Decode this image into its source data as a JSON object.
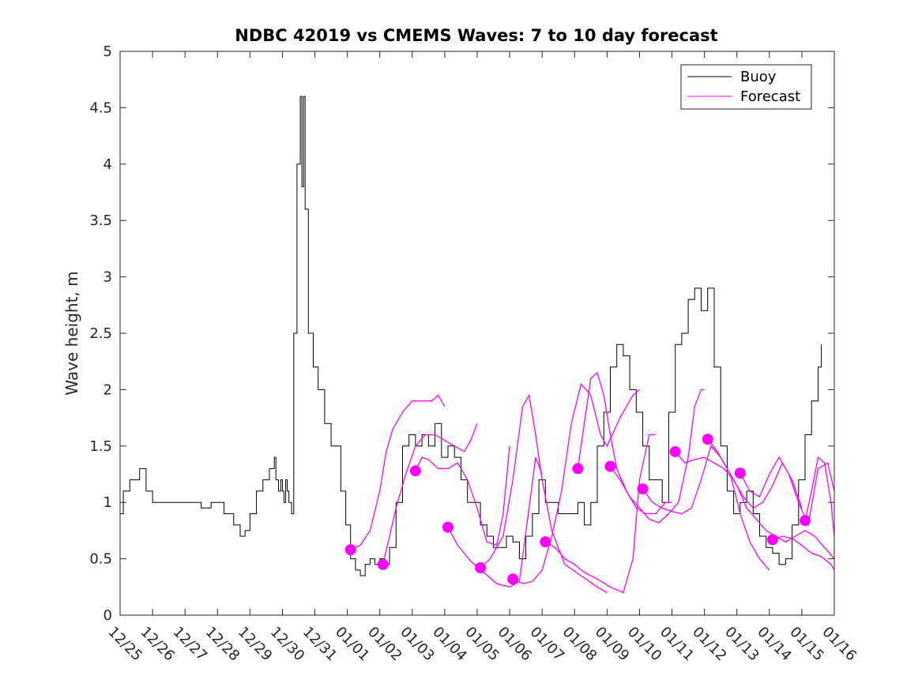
{
  "chart_data": {
    "type": "line",
    "title": "NDBC 42019 vs CMEMS Waves: 7 to 10 day forecast",
    "xlabel": "",
    "ylabel": "Wave height, m",
    "xlim": [
      0,
      22
    ],
    "ylim": [
      0,
      5
    ],
    "yticks": [
      0,
      0.5,
      1,
      1.5,
      2,
      2.5,
      3,
      3.5,
      4,
      4.5,
      5
    ],
    "ytick_labels": [
      "0",
      "0.5",
      "1",
      "1.5",
      "2",
      "2.5",
      "3",
      "3.5",
      "4",
      "4.5",
      "5"
    ],
    "xticks": [
      0,
      1,
      2,
      3,
      4,
      5,
      6,
      7,
      8,
      9,
      10,
      11,
      12,
      13,
      14,
      15,
      16,
      17,
      18,
      19,
      20,
      21,
      22
    ],
    "xtick_labels": [
      "12/25",
      "12/26",
      "12/27",
      "12/28",
      "12/29",
      "12/30",
      "12/31",
      "01/01",
      "01/02",
      "01/03",
      "01/04",
      "01/05",
      "01/06",
      "01/07",
      "01/08",
      "01/09",
      "01/10",
      "01/11",
      "01/12",
      "01/13",
      "01/14",
      "01/15",
      "01/16"
    ],
    "legend": {
      "position": "top-right",
      "entries": [
        {
          "label": "Buoy",
          "color": "#000000"
        },
        {
          "label": "Forecast",
          "color": "#ff00ff"
        }
      ]
    },
    "series": [
      {
        "name": "Buoy",
        "color": "#000000",
        "x": [
          0,
          0.1,
          0.3,
          0.5,
          0.6,
          0.8,
          1.0,
          1.3,
          1.6,
          1.9,
          2.2,
          2.5,
          2.8,
          3.0,
          3.2,
          3.5,
          3.7,
          3.85,
          4.0,
          4.2,
          4.4,
          4.6,
          4.75,
          4.8,
          4.88,
          4.95,
          5.0,
          5.05,
          5.1,
          5.15,
          5.2,
          5.28,
          5.35,
          5.45,
          5.55,
          5.6,
          5.65,
          5.7,
          5.8,
          5.95,
          6.1,
          6.3,
          6.5,
          6.8,
          6.95,
          7.1,
          7.25,
          7.4,
          7.55,
          7.7,
          7.85,
          8.0,
          8.15,
          8.3,
          8.5,
          8.7,
          8.9,
          9.1,
          9.3,
          9.5,
          9.7,
          9.9,
          10.1,
          10.3,
          10.5,
          10.7,
          10.9,
          11.1,
          11.3,
          11.5,
          11.7,
          11.9,
          12.1,
          12.3,
          12.5,
          12.7,
          12.9,
          13.1,
          13.3,
          13.5,
          13.7,
          13.9,
          14.1,
          14.3,
          14.5,
          14.7,
          14.9,
          15.1,
          15.3,
          15.5,
          15.7,
          15.9,
          16.1,
          16.3,
          16.5,
          16.7,
          16.9,
          17.1,
          17.3,
          17.5,
          17.7,
          17.9,
          18.1,
          18.3,
          18.5,
          18.7,
          18.9,
          19.1,
          19.3,
          19.5,
          19.7,
          19.9,
          20.1,
          20.3,
          20.5,
          20.7,
          20.9,
          21.1,
          21.3,
          21.5,
          21.6
        ],
        "y": [
          0.9,
          1.1,
          1.2,
          1.2,
          1.3,
          1.1,
          1.0,
          1.0,
          1.0,
          1.0,
          1.0,
          0.95,
          1.0,
          1.0,
          0.9,
          0.8,
          0.7,
          0.75,
          0.9,
          1.1,
          1.2,
          1.3,
          1.4,
          1.2,
          1.1,
          1.2,
          1.1,
          1.0,
          1.2,
          1.1,
          1.0,
          0.9,
          2.5,
          4.0,
          4.6,
          3.8,
          4.6,
          3.6,
          2.5,
          2.2,
          2.0,
          1.7,
          1.5,
          1.1,
          0.8,
          0.5,
          0.4,
          0.35,
          0.45,
          0.5,
          0.45,
          0.5,
          0.45,
          0.6,
          1.0,
          1.5,
          1.6,
          1.5,
          1.6,
          1.5,
          1.7,
          1.4,
          1.5,
          1.4,
          1.2,
          1.0,
          1.0,
          0.8,
          0.7,
          0.6,
          0.6,
          0.7,
          0.65,
          0.5,
          0.7,
          0.9,
          1.2,
          1.0,
          1.0,
          0.9,
          0.9,
          0.9,
          1.0,
          0.8,
          1.0,
          1.5,
          1.8,
          2.2,
          2.4,
          2.3,
          2.0,
          1.8,
          1.5,
          1.2,
          1.2,
          1.0,
          1.8,
          2.4,
          2.5,
          2.8,
          2.9,
          2.7,
          2.9,
          2.2,
          1.5,
          1.1,
          0.9,
          1.0,
          1.1,
          0.9,
          0.7,
          0.6,
          0.55,
          0.45,
          0.5,
          0.8,
          1.2,
          1.6,
          1.9,
          2.2,
          2.4
        ]
      }
    ],
    "forecast_lines": [
      {
        "x": [
          7.1,
          7.4,
          7.7,
          8.0,
          8.2,
          8.4,
          8.7,
          9.0,
          9.3,
          9.6,
          9.8,
          10.0
        ],
        "y": [
          0.58,
          0.62,
          0.75,
          1.1,
          1.45,
          1.65,
          1.8,
          1.9,
          1.9,
          1.9,
          1.95,
          1.85
        ]
      },
      {
        "x": [
          8.1,
          8.3,
          8.5,
          8.8,
          9.1,
          9.4,
          9.7,
          10.0,
          10.3,
          10.6,
          10.8,
          11.0
        ],
        "y": [
          0.45,
          0.7,
          0.95,
          1.25,
          1.5,
          1.6,
          1.6,
          1.55,
          1.5,
          1.45,
          1.55,
          1.7
        ]
      },
      {
        "x": [
          9.1,
          9.3,
          9.5,
          9.8,
          10.1,
          10.4,
          10.7,
          11.0,
          11.3,
          11.6,
          11.8,
          12.0
        ],
        "y": [
          1.28,
          1.4,
          1.38,
          1.3,
          1.3,
          1.35,
          1.2,
          0.95,
          0.65,
          0.62,
          0.9,
          1.5
        ]
      },
      {
        "x": [
          10.1,
          10.4,
          10.8,
          11.2,
          11.6,
          12.0,
          12.3,
          12.6,
          12.8,
          13.0
        ],
        "y": [
          0.78,
          0.62,
          0.48,
          0.38,
          0.28,
          0.25,
          0.3,
          0.95,
          1.4,
          1.25
        ]
      },
      {
        "x": [
          11.1,
          11.4,
          11.8,
          12.1,
          12.4,
          12.6,
          12.8,
          13.0,
          13.3,
          13.7,
          14.2,
          14.7,
          15.0
        ],
        "y": [
          0.42,
          0.5,
          0.7,
          1.2,
          1.85,
          1.95,
          1.6,
          1.2,
          0.75,
          0.45,
          0.35,
          0.25,
          0.2
        ]
      },
      {
        "x": [
          12.1,
          12.4,
          12.7,
          13.0,
          13.3,
          13.6,
          13.9,
          14.2,
          14.5,
          14.8,
          15.0,
          15.4,
          15.8,
          16.0
        ],
        "y": [
          0.32,
          0.28,
          0.3,
          0.4,
          0.7,
          1.1,
          1.7,
          2.05,
          1.95,
          1.6,
          1.5,
          1.75,
          1.95,
          2.0
        ]
      },
      {
        "x": [
          13.1,
          13.4,
          13.7,
          14.0,
          14.3,
          14.7,
          15.1,
          15.5,
          15.8,
          16.0,
          16.3,
          16.5
        ],
        "y": [
          0.65,
          0.6,
          0.5,
          0.45,
          0.38,
          0.32,
          0.25,
          0.2,
          0.5,
          1.2,
          1.6,
          1.6
        ]
      },
      {
        "x": [
          14.1,
          14.3,
          14.5,
          14.7,
          14.9,
          15.1,
          15.3,
          15.6,
          15.9,
          16.2,
          16.5,
          16.8,
          17.0
        ],
        "y": [
          1.3,
          1.7,
          2.1,
          2.15,
          1.95,
          1.6,
          1.3,
          1.1,
          0.95,
          0.9,
          0.9,
          1.0,
          1.0
        ]
      },
      {
        "x": [
          15.1,
          15.4,
          15.7,
          16.0,
          16.3,
          16.6,
          16.9,
          17.2,
          17.5,
          17.7,
          17.9,
          18.0
        ],
        "y": [
          1.32,
          1.2,
          1.05,
          0.95,
          0.85,
          0.82,
          0.9,
          1.0,
          1.4,
          1.85,
          2.0,
          2.0
        ]
      },
      {
        "x": [
          16.1,
          16.4,
          16.7,
          17.0,
          17.3,
          17.6,
          17.9,
          18.2,
          18.5,
          18.8,
          19.1,
          19.4,
          19.7,
          20.0
        ],
        "y": [
          1.12,
          1.0,
          0.95,
          0.92,
          0.9,
          0.95,
          1.2,
          1.5,
          1.4,
          1.25,
          0.9,
          0.65,
          0.5,
          0.4
        ]
      },
      {
        "x": [
          17.1,
          17.4,
          17.7,
          18.0,
          18.3,
          18.6,
          18.9,
          19.2,
          19.5,
          19.8,
          20.1,
          20.4,
          20.7,
          21.0
        ],
        "y": [
          1.45,
          1.35,
          1.38,
          1.4,
          1.35,
          1.3,
          1.2,
          1.05,
          0.95,
          1.0,
          1.15,
          1.35,
          1.2,
          0.95
        ]
      },
      {
        "x": [
          18.1,
          18.4,
          18.7,
          19.0,
          19.3,
          19.6,
          19.9,
          20.2,
          20.5,
          20.8,
          21.1,
          21.4,
          21.7,
          22.0
        ],
        "y": [
          1.56,
          1.45,
          1.3,
          1.15,
          0.95,
          0.85,
          0.75,
          0.7,
          0.65,
          0.7,
          0.75,
          0.7,
          0.6,
          0.5
        ]
      },
      {
        "x": [
          19.1,
          19.4,
          19.7,
          20.0,
          20.3,
          20.6,
          20.9,
          21.2,
          21.5,
          21.8,
          22.0
        ],
        "y": [
          1.26,
          1.1,
          1.05,
          1.25,
          1.4,
          1.25,
          1.0,
          0.8,
          1.3,
          1.35,
          1.1
        ]
      },
      {
        "x": [
          20.1,
          20.4,
          20.7,
          21.0,
          21.3,
          21.6,
          21.9,
          22.0
        ],
        "y": [
          0.67,
          0.7,
          0.68,
          0.62,
          0.55,
          0.52,
          0.45,
          0.4
        ]
      },
      {
        "x": [
          21.1,
          21.3,
          21.5,
          21.7,
          21.9,
          22.0
        ],
        "y": [
          0.84,
          1.1,
          1.4,
          1.35,
          1.0,
          0.7
        ]
      }
    ],
    "forecast_markers": {
      "x": [
        7.1,
        8.1,
        9.1,
        10.1,
        11.1,
        12.1,
        13.1,
        14.1,
        15.1,
        16.1,
        17.1,
        18.1,
        19.1,
        20.1,
        21.1
      ],
      "y": [
        0.58,
        0.45,
        1.28,
        0.78,
        0.42,
        0.32,
        0.65,
        1.3,
        1.32,
        1.12,
        1.45,
        1.56,
        1.26,
        0.67,
        0.84
      ]
    },
    "colors": {
      "buoy": "#000000",
      "forecast": "#ff00ff",
      "axes": "#262626"
    }
  }
}
